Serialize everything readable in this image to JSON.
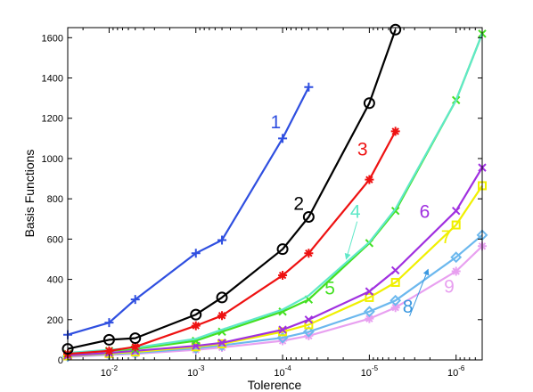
{
  "chart_data": {
    "type": "line",
    "xlabel": "Tolerence",
    "ylabel": "Basis Functions",
    "xscale": "log",
    "x_reversed": true,
    "xlim": [
      0.03,
      5e-07
    ],
    "ylim": [
      0,
      1650
    ],
    "grid": false,
    "x_tick_values": [
      0.01,
      0.001,
      0.0001,
      1e-05,
      1e-06
    ],
    "x_tick_labels": [
      {
        "base": "10",
        "exp": "-2"
      },
      {
        "base": "10",
        "exp": "-3"
      },
      {
        "base": "10",
        "exp": "-4"
      },
      {
        "base": "10",
        "exp": "-5"
      },
      {
        "base": "10",
        "exp": "-6"
      }
    ],
    "y_tick_values": [
      0,
      200,
      400,
      600,
      800,
      1000,
      1200,
      1400,
      1600
    ],
    "y_tick_labels": [
      "0",
      "200",
      "400",
      "600",
      "800",
      "1000",
      "1200",
      "1400",
      "1600"
    ],
    "series": [
      {
        "name": "1",
        "color": "#2f4fe0",
        "marker": "plus",
        "x": [
          0.03,
          0.01,
          0.005,
          0.001,
          0.0005,
          0.0001,
          5e-05
        ],
        "y": [
          125,
          185,
          300,
          530,
          595,
          1100,
          1355
        ]
      },
      {
        "name": "2",
        "color": "#000000",
        "marker": "circle",
        "x": [
          0.03,
          0.01,
          0.005,
          0.001,
          0.0005,
          0.0001,
          5e-05,
          1e-05,
          5e-06
        ],
        "y": [
          55,
          100,
          108,
          225,
          310,
          550,
          710,
          1275,
          1640
        ]
      },
      {
        "name": "3",
        "color": "#ee1111",
        "marker": "asterisk",
        "x": [
          0.03,
          0.01,
          0.005,
          0.001,
          0.0005,
          0.0001,
          5e-05,
          1e-05,
          5e-06
        ],
        "y": [
          30,
          45,
          65,
          170,
          220,
          420,
          530,
          895,
          1135
        ]
      },
      {
        "name": "4",
        "color": "#5fe8c8",
        "marker": "none",
        "x": [
          0.03,
          0.01,
          0.005,
          0.001,
          0.0005,
          0.0001,
          5e-05,
          1e-05,
          5e-06,
          1e-06,
          5e-07
        ],
        "y": [
          35,
          50,
          60,
          105,
          150,
          250,
          320,
          585,
          750,
          1290,
          1620
        ]
      },
      {
        "name": "5",
        "color": "#44e022",
        "marker": "x",
        "x": [
          0.03,
          0.01,
          0.005,
          0.001,
          0.0005,
          0.0001,
          5e-05,
          1e-05,
          5e-06,
          1e-06,
          5e-07
        ],
        "y": [
          30,
          45,
          55,
          95,
          140,
          240,
          300,
          580,
          740,
          1290,
          1620
        ]
      },
      {
        "name": "6",
        "color": "#a030e0",
        "marker": "x",
        "x": [
          0.03,
          0.01,
          0.005,
          0.001,
          0.0005,
          0.0001,
          5e-05,
          1e-05,
          5e-06,
          1e-06,
          5e-07
        ],
        "y": [
          22,
          35,
          45,
          70,
          85,
          150,
          200,
          340,
          445,
          740,
          955
        ]
      },
      {
        "name": "7",
        "color": "#f0f000",
        "marker": "square",
        "x": [
          0.03,
          0.01,
          0.005,
          0.001,
          0.0005,
          0.0001,
          5e-05,
          1e-05,
          5e-06,
          1e-06,
          5e-07
        ],
        "y": [
          20,
          32,
          40,
          65,
          80,
          140,
          175,
          310,
          385,
          670,
          865
        ]
      },
      {
        "name": "8",
        "color": "#6cb8ee",
        "marker": "diamond",
        "x": [
          0.03,
          0.01,
          0.005,
          0.001,
          0.0005,
          0.0001,
          5e-05,
          1e-05,
          5e-06,
          1e-06,
          5e-07
        ],
        "y": [
          18,
          28,
          35,
          58,
          72,
          110,
          140,
          240,
          295,
          510,
          620
        ]
      },
      {
        "name": "9",
        "color": "#e8a0f0",
        "marker": "asterisk",
        "x": [
          0.03,
          0.01,
          0.005,
          0.001,
          0.0005,
          0.0001,
          5e-05,
          1e-05,
          5e-06,
          1e-06,
          5e-07
        ],
        "y": [
          15,
          25,
          30,
          50,
          62,
          95,
          120,
          205,
          260,
          440,
          565
        ]
      }
    ],
    "annotations": [
      {
        "text": "1",
        "color": "#2f4fe0",
        "x": 0.00012,
        "y": 1150
      },
      {
        "text": "2",
        "color": "#000000",
        "x": 6.5e-05,
        "y": 745
      },
      {
        "text": "3",
        "color": "#ee1111",
        "x": 1.2e-05,
        "y": 1015
      },
      {
        "text": "4",
        "color": "#5fe8c8",
        "x": 1.45e-05,
        "y": 705,
        "arrow_to": [
          1.85e-05,
          500
        ]
      },
      {
        "text": "5",
        "color": "#44e022",
        "x": 2.85e-05,
        "y": 325
      },
      {
        "text": "6",
        "color": "#a030e0",
        "x": 2.3e-06,
        "y": 705
      },
      {
        "text": "7",
        "color": "#f0f000",
        "x": 1.3e-06,
        "y": 580
      },
      {
        "text": "8",
        "color": "#3a98e0",
        "x": 3.6e-06,
        "y": 235,
        "arrow_to": [
          2.1e-06,
          450
        ]
      },
      {
        "text": "9",
        "color": "#e8a0f0",
        "x": 1.2e-06,
        "y": 335
      }
    ]
  }
}
